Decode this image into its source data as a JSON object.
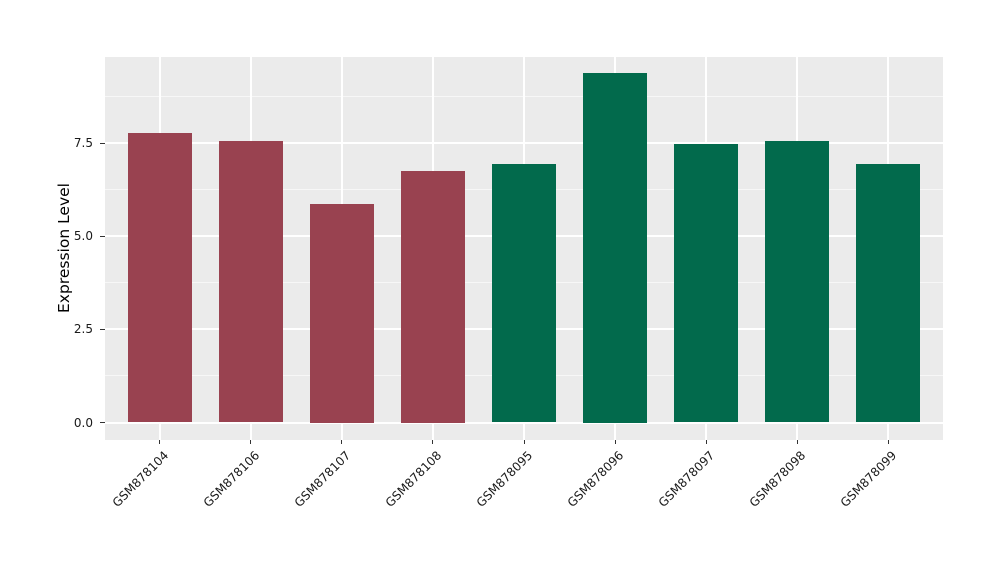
{
  "figure": {
    "background": "#FFFFFF",
    "panel_background": "#EBEBEB",
    "grid_major_color": "#FFFFFF",
    "grid_minor_color": "#F7F7F7",
    "tick_mark_color": "#333333",
    "tick_label_color": "#1A1A1A",
    "axis_title_color": "#000000"
  },
  "chart_data": {
    "type": "bar",
    "title": "",
    "xlabel": "",
    "ylabel": "Expression Level",
    "categories": [
      "GSM878104",
      "GSM878106",
      "GSM878107",
      "GSM878108",
      "GSM878095",
      "GSM878096",
      "GSM878097",
      "GSM878098",
      "GSM878099"
    ],
    "values": [
      7.78,
      7.56,
      5.87,
      6.75,
      6.94,
      9.38,
      7.47,
      7.55,
      6.94
    ],
    "bar_colors": [
      "#994250",
      "#994250",
      "#994250",
      "#994250",
      "#026A4C",
      "#026A4C",
      "#026A4C",
      "#026A4C",
      "#026A4C"
    ],
    "ylim": [
      -0.47,
      9.82
    ],
    "yticks": [
      0.0,
      2.5,
      5.0,
      7.5
    ],
    "ytick_labels": [
      "0.0",
      "2.5",
      "5.0",
      "7.5"
    ],
    "yticks_minor": [
      1.25,
      3.75,
      6.25,
      8.75
    ],
    "grid": true,
    "legend": false,
    "x_label_rotation_deg": 45
  }
}
